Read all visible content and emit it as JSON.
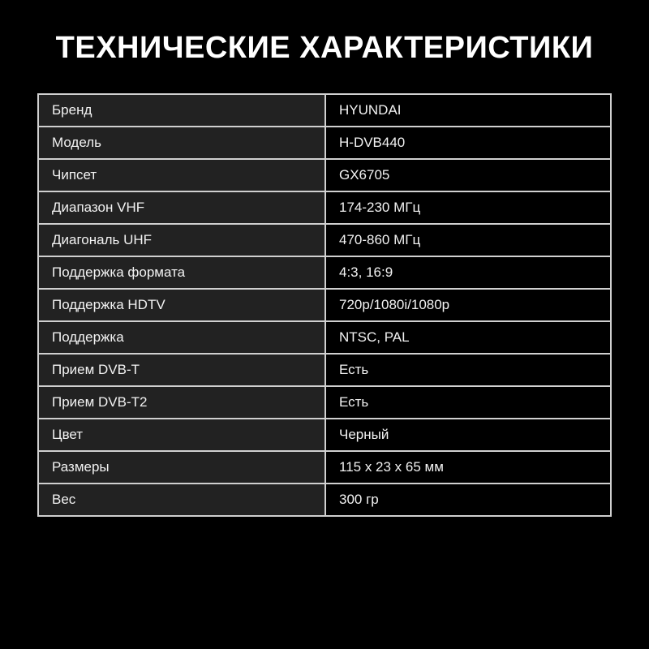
{
  "title": "ТЕХНИЧЕСКИЕ ХАРАКТЕРИСТИКИ",
  "specs": [
    {
      "label": "Бренд",
      "value": "HYUNDAI"
    },
    {
      "label": "Модель",
      "value": "H-DVB440"
    },
    {
      "label": "Чипсет",
      "value": "GX6705"
    },
    {
      "label": "Диапазон VHF",
      "value": "174-230 МГц"
    },
    {
      "label": "Диагональ UHF",
      "value": "470-860 МГц"
    },
    {
      "label": "Поддержка формата",
      "value": "4:3, 16:9"
    },
    {
      "label": "Поддержка HDTV",
      "value": "720p/1080i/1080p"
    },
    {
      "label": "Поддержка",
      "value": "NTSC, PAL"
    },
    {
      "label": "Прием DVB-T",
      "value": "Есть"
    },
    {
      "label": "Прием DVB-T2",
      "value": "Есть"
    },
    {
      "label": "Цвет",
      "value": "Черный"
    },
    {
      "label": "Размеры",
      "value": "115 x 23 x 65 мм"
    },
    {
      "label": "Вес",
      "value": "300 гр"
    }
  ]
}
